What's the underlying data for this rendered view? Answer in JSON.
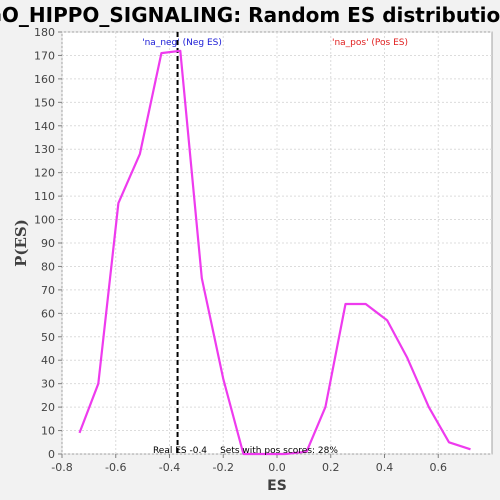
{
  "chart_data": {
    "type": "line",
    "title": "GO_HIPPO_SIGNALING: Random ES distribution",
    "xlabel": "ES",
    "ylabel": "P(ES)",
    "xlim": [
      -0.8,
      0.8
    ],
    "ylim": [
      0,
      180
    ],
    "x_ticks": [
      -0.8,
      -0.6,
      -0.4,
      -0.2,
      0.0,
      0.2,
      0.4,
      0.6
    ],
    "x_tick_labels": [
      "-0.8",
      "-0.6",
      "-0.4",
      "-0.2",
      "0.0",
      "0.2",
      "0.4",
      "0.6"
    ],
    "y_ticks": [
      0,
      10,
      20,
      30,
      40,
      50,
      60,
      70,
      80,
      90,
      100,
      110,
      120,
      130,
      140,
      150,
      160,
      170,
      180
    ],
    "grid": true,
    "series": [
      {
        "color": "#ee3bee",
        "x": [
          -0.735,
          -0.665,
          -0.59,
          -0.51,
          -0.43,
          -0.36,
          -0.28,
          -0.2,
          -0.125,
          -0.045,
          0.03,
          0.11,
          0.18,
          0.255,
          0.33,
          0.41,
          0.485,
          0.565,
          0.64,
          0.72
        ],
        "y": [
          9,
          30,
          107,
          128,
          171,
          172,
          75,
          32,
          0,
          0,
          0,
          1,
          20,
          64,
          64,
          57,
          41,
          20,
          5,
          2
        ]
      }
    ],
    "real_es_marker": {
      "x": -0.37,
      "label": "Real ES -0.4",
      "color": "#000000"
    },
    "annotations": {
      "neg_label": "'na_neg' (Neg ES)",
      "neg_color": "#1a1ad6",
      "pos_label": "'na_pos' (Pos ES)",
      "pos_color": "#e02020",
      "sets_text": "Sets with pos scores: 28%"
    }
  }
}
